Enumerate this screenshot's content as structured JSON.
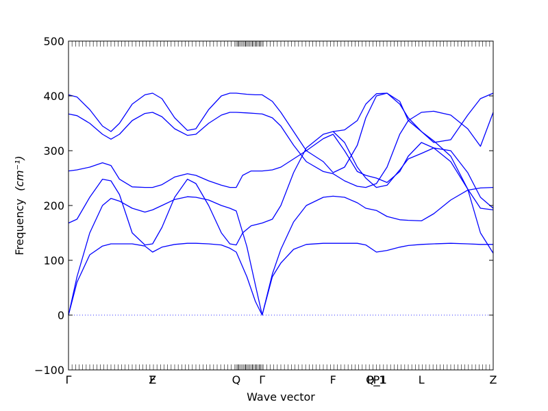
{
  "chart_data": {
    "type": "line",
    "title": "",
    "xlabel": "Wave vector",
    "ylabel": "Frequency",
    "ylabel_unit": "(cm⁻¹)",
    "ylim": [
      -100,
      500
    ],
    "yticks": [
      -100,
      0,
      100,
      200,
      300,
      400,
      500
    ],
    "grid": false,
    "zero_line": true,
    "line_color": "#0000ff",
    "zero_line_color": "#2b2bff",
    "xlim": [
      0,
      1
    ],
    "high_symmetry_points": [
      {
        "label": "Γ",
        "x": 0.0
      },
      {
        "label": "F",
        "x": 0.198
      },
      {
        "label": "Z",
        "x": 0.198
      },
      {
        "label": "Q",
        "x": 0.395
      },
      {
        "label": "Γ",
        "x": 0.456
      },
      {
        "label": "F",
        "x": 0.623
      },
      {
        "label": "P",
        "x": 0.725
      },
      {
        "label": "P_1",
        "x": 0.725
      },
      {
        "label": "Q_1",
        "x": 0.725
      },
      {
        "label": "L",
        "x": 0.831
      },
      {
        "label": "Z",
        "x": 1.0
      }
    ],
    "series": [
      {
        "values_x": [
          0.0,
          0.02,
          0.05,
          0.08,
          0.1,
          0.12,
          0.15,
          0.18,
          0.198,
          0.22,
          0.25,
          0.28,
          0.3,
          0.33,
          0.36,
          0.38,
          0.395,
          0.42,
          0.44,
          0.456,
          0.48,
          0.5,
          0.53,
          0.56,
          0.6,
          0.623,
          0.65,
          0.68,
          0.7,
          0.725,
          0.75,
          0.78,
          0.8,
          0.831,
          0.86,
          0.9,
          0.94,
          0.97,
          1.0
        ],
        "values_y": [
          0,
          60,
          110,
          126,
          130,
          130,
          130,
          126,
          115,
          124,
          129,
          131,
          131,
          130,
          128,
          122,
          115,
          70,
          25,
          0,
          70,
          95,
          120,
          129,
          131,
          131,
          131,
          131,
          128,
          115,
          118,
          124,
          127,
          129,
          130,
          131,
          130,
          129,
          129
        ]
      },
      {
        "values_x": [
          0.0,
          0.02,
          0.05,
          0.08,
          0.1,
          0.12,
          0.15,
          0.18,
          0.198,
          0.22,
          0.25,
          0.28,
          0.3,
          0.33,
          0.36,
          0.38,
          0.395,
          0.42,
          0.44,
          0.456,
          0.48,
          0.5,
          0.53,
          0.56,
          0.6,
          0.623,
          0.65,
          0.68,
          0.7,
          0.725,
          0.75,
          0.78,
          0.8,
          0.831,
          0.86,
          0.9,
          0.94,
          0.97,
          1.0
        ],
        "values_y": [
          0,
          70,
          150,
          200,
          213,
          208,
          195,
          188,
          192,
          200,
          211,
          216,
          215,
          210,
          200,
          195,
          190,
          125,
          55,
          0,
          75,
          120,
          170,
          200,
          215,
          217,
          215,
          205,
          195,
          191,
          180,
          174,
          173,
          172,
          185,
          210,
          228,
          232,
          233
        ]
      },
      {
        "values_x": [
          0.0,
          0.02,
          0.05,
          0.08,
          0.1,
          0.12,
          0.15,
          0.18,
          0.198,
          0.22,
          0.25,
          0.28,
          0.3,
          0.33,
          0.36,
          0.38,
          0.395,
          0.41,
          0.43,
          0.456,
          0.48,
          0.5,
          0.53,
          0.56,
          0.6,
          0.623,
          0.65,
          0.68,
          0.7,
          0.725,
          0.75,
          0.78,
          0.8,
          0.831,
          0.86,
          0.9,
          0.94,
          0.97,
          1.0
        ],
        "values_y": [
          168,
          175,
          215,
          248,
          245,
          220,
          150,
          128,
          130,
          160,
          215,
          248,
          240,
          200,
          150,
          130,
          128,
          150,
          163,
          168,
          175,
          200,
          260,
          305,
          330,
          335,
          315,
          270,
          250,
          233,
          237,
          265,
          285,
          295,
          305,
          300,
          260,
          215,
          195
        ]
      },
      {
        "values_x": [
          0.0,
          0.02,
          0.05,
          0.08,
          0.1,
          0.12,
          0.15,
          0.18,
          0.198,
          0.22,
          0.25,
          0.28,
          0.3,
          0.33,
          0.36,
          0.38,
          0.395,
          0.41,
          0.43,
          0.456,
          0.48,
          0.5,
          0.53,
          0.56,
          0.6,
          0.623,
          0.65,
          0.68,
          0.7,
          0.725,
          0.75,
          0.78,
          0.8,
          0.831,
          0.86,
          0.9,
          0.94,
          0.97,
          1.0
        ],
        "values_y": [
          263,
          265,
          270,
          278,
          273,
          248,
          234,
          233,
          233,
          238,
          252,
          258,
          255,
          245,
          237,
          233,
          233,
          255,
          263,
          263,
          265,
          270,
          285,
          300,
          322,
          330,
          300,
          262,
          255,
          250,
          242,
          262,
          290,
          315,
          305,
          280,
          230,
          195,
          192
        ]
      },
      {
        "values_x": [
          0.0,
          0.02,
          0.05,
          0.08,
          0.1,
          0.12,
          0.15,
          0.18,
          0.198,
          0.22,
          0.25,
          0.28,
          0.3,
          0.33,
          0.36,
          0.38,
          0.395,
          0.42,
          0.44,
          0.456,
          0.48,
          0.5,
          0.53,
          0.56,
          0.6,
          0.623,
          0.65,
          0.68,
          0.7,
          0.725,
          0.75,
          0.78,
          0.8,
          0.831,
          0.86,
          0.9,
          0.94,
          0.97,
          1.0
        ],
        "values_y": [
          367,
          364,
          350,
          330,
          321,
          330,
          355,
          368,
          370,
          362,
          340,
          328,
          330,
          350,
          365,
          370,
          370,
          369,
          368,
          367,
          360,
          345,
          310,
          280,
          262,
          258,
          245,
          235,
          233,
          240,
          270,
          330,
          355,
          370,
          372,
          365,
          340,
          308,
          370
        ]
      },
      {
        "values_x": [
          0.0,
          0.02,
          0.05,
          0.08,
          0.1,
          0.12,
          0.15,
          0.18,
          0.198,
          0.22,
          0.25,
          0.28,
          0.3,
          0.33,
          0.36,
          0.38,
          0.395,
          0.42,
          0.44,
          0.456,
          0.48,
          0.5,
          0.53,
          0.56,
          0.6,
          0.623,
          0.65,
          0.68,
          0.7,
          0.725,
          0.75,
          0.78,
          0.8,
          0.831,
          0.86,
          0.9,
          0.94,
          0.97,
          1.0
        ],
        "values_y": [
          402,
          398,
          375,
          345,
          335,
          350,
          385,
          402,
          405,
          395,
          360,
          337,
          340,
          375,
          400,
          405,
          405,
          403,
          402,
          402,
          390,
          370,
          335,
          300,
          280,
          260,
          270,
          310,
          360,
          400,
          405,
          390,
          355,
          335,
          318,
          290,
          230,
          150,
          113
        ]
      },
      {
        "values_x": [
          0.623,
          0.65,
          0.68,
          0.7,
          0.725,
          0.75,
          0.78,
          0.8,
          0.831,
          0.86,
          0.9,
          0.94,
          0.97,
          1.0
        ],
        "values_y": [
          335,
          338,
          355,
          385,
          404,
          405,
          385,
          360,
          335,
          315,
          320,
          365,
          395,
          405
        ]
      }
    ]
  }
}
